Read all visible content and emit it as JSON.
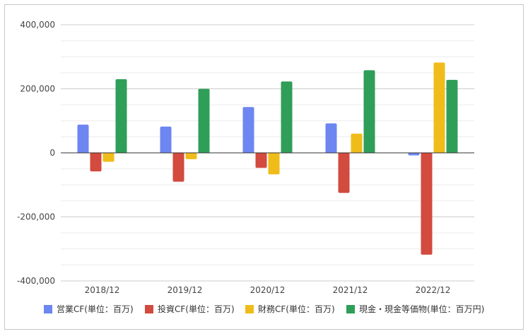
{
  "chart_data": {
    "type": "bar",
    "categories": [
      "2018/12",
      "2019/12",
      "2020/12",
      "2021/12",
      "2022/12"
    ],
    "series": [
      {
        "name": "営業CF(単位：百万)",
        "color": "#6d86f2",
        "values": [
          88000,
          82000,
          143000,
          92000,
          -8000
        ]
      },
      {
        "name": "投資CF(単位：百万)",
        "color": "#d34a3e",
        "values": [
          -58000,
          -90000,
          -47000,
          -125000,
          -318000
        ]
      },
      {
        "name": "財務CF(単位：百万)",
        "color": "#f0bc1a",
        "values": [
          -28000,
          -20000,
          -67000,
          60000,
          282000
        ]
      },
      {
        "name": "現金・現金等価物(単位：百万円)",
        "color": "#2f9e58",
        "values": [
          230000,
          200000,
          223000,
          258000,
          228000
        ]
      }
    ],
    "yticks": [
      "400,000",
      "200,000",
      "0",
      "-200,000",
      "-400,000"
    ],
    "ytick_values": [
      400000,
      200000,
      0,
      -200000,
      -400000
    ],
    "ylim": [
      -400000,
      400000
    ],
    "grid": true,
    "legend": "bottom"
  }
}
